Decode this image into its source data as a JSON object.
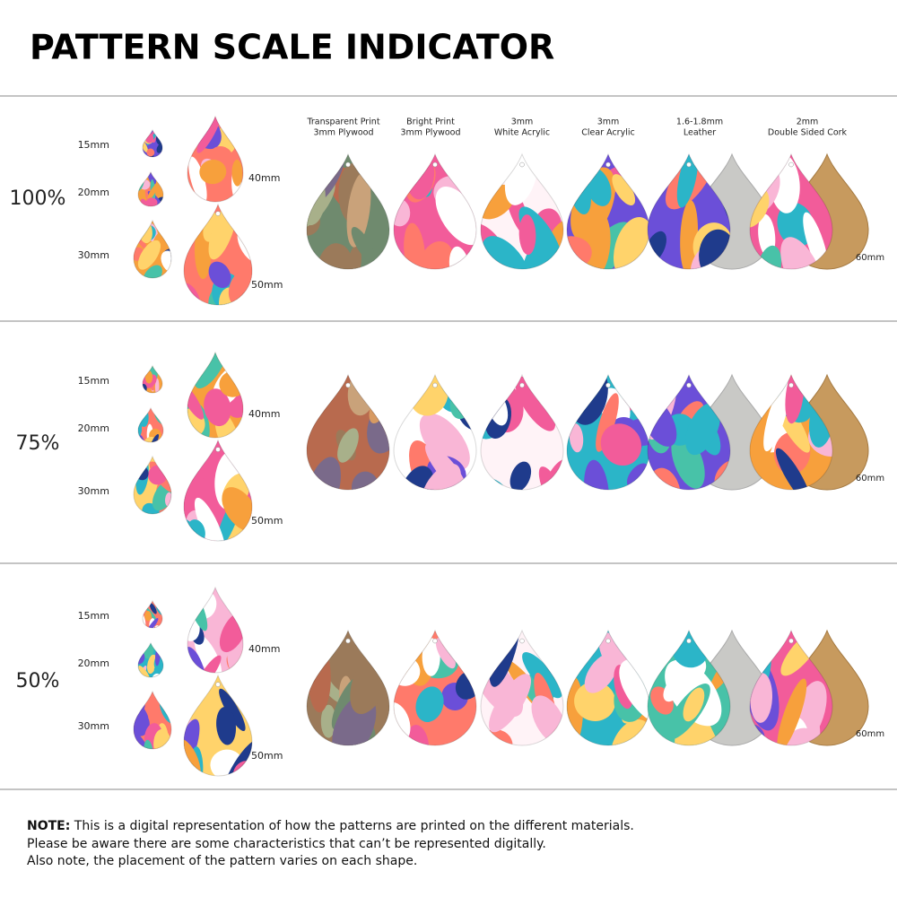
{
  "header": {
    "title": "PATTERN SCALE INDICATOR"
  },
  "materials": [
    {
      "lines": [
        "Transparent Print",
        "3mm Plywood"
      ]
    },
    {
      "lines": [
        "Bright Print",
        "3mm Plywood"
      ]
    },
    {
      "lines": [
        "3mm",
        "White Acrylic"
      ]
    },
    {
      "lines": [
        "3mm",
        "Clear Acrylic"
      ]
    },
    {
      "lines": [
        "1.6-1.8mm",
        "Leather"
      ]
    },
    {
      "lines": [
        "2mm",
        "Double Sided Cork"
      ]
    }
  ],
  "sections": [
    {
      "scale": "100%",
      "sizes": [
        "15mm",
        "20mm",
        "30mm",
        "40mm",
        "50mm"
      ],
      "large_size": "60mm"
    },
    {
      "scale": "75%",
      "sizes": [
        "15mm",
        "20mm",
        "30mm",
        "40mm",
        "50mm"
      ],
      "large_size": "60mm"
    },
    {
      "scale": "50%",
      "sizes": [
        "15mm",
        "20mm",
        "30mm",
        "40mm",
        "50mm"
      ],
      "large_size": "60mm"
    }
  ],
  "note": {
    "label": "NOTE:",
    "lines": [
      "This is a digital representation of how the patterns are printed on the different materials.",
      "Please be aware there are some characteristics that can’t be represented digitally.",
      "Also note, the placement of the pattern varies on each shape."
    ]
  }
}
